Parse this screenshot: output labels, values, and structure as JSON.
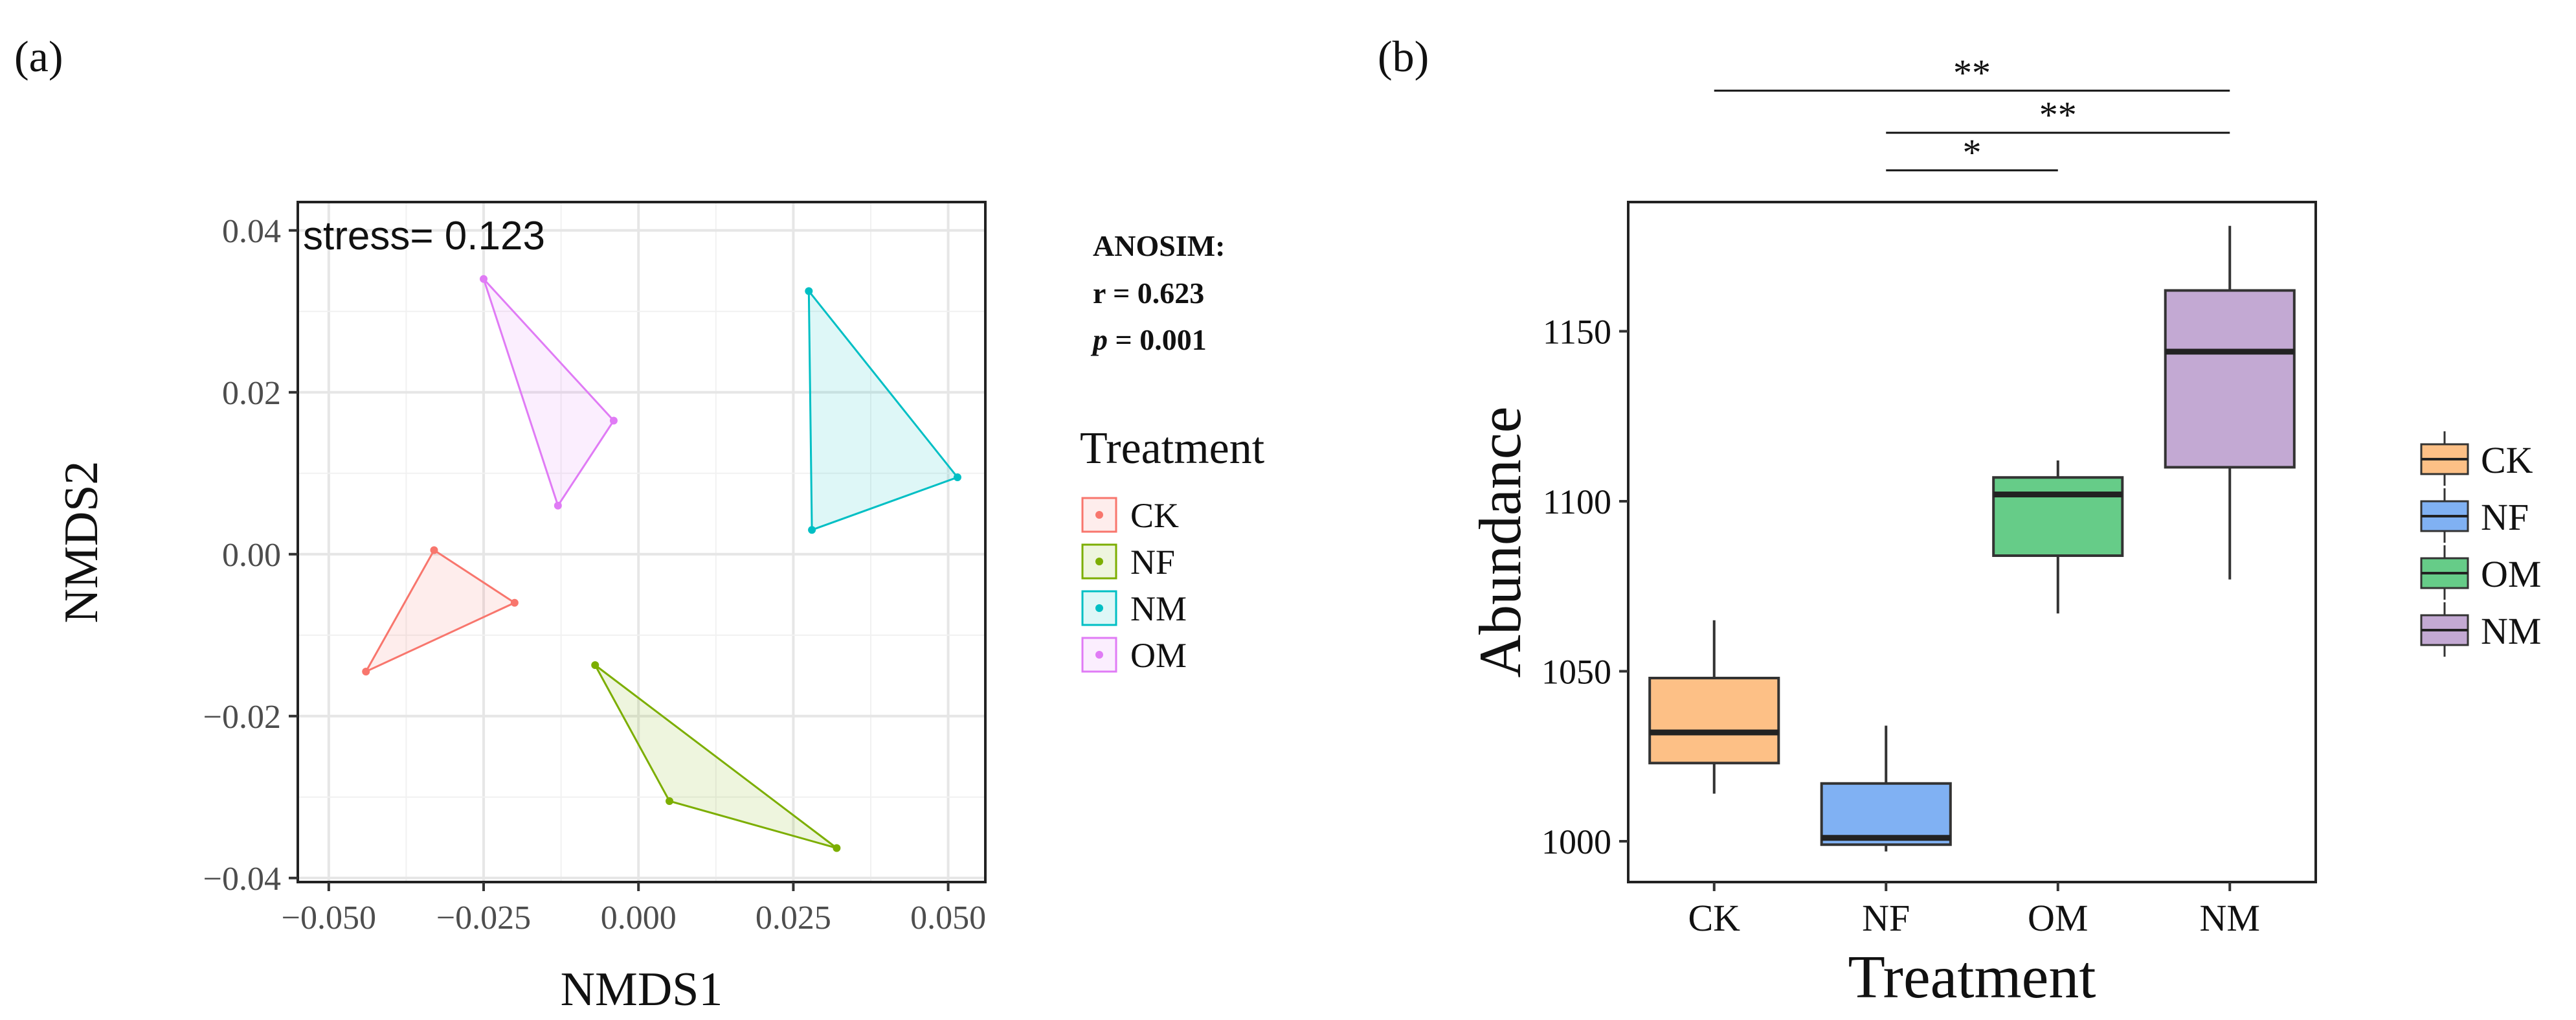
{
  "chart_data": [
    {
      "panel_label": "(a)",
      "type": "scatter",
      "subtype": "NMDS ordination with convex hulls",
      "xlabel": "NMDS1",
      "ylabel": "NMDS2",
      "xlim": [
        -0.055,
        0.056
      ],
      "ylim": [
        -0.0405,
        0.0435
      ],
      "x_ticks": [
        -0.05,
        -0.025,
        0.0,
        0.025,
        0.05
      ],
      "x_tick_labels": [
        "−0.050",
        "−0.025",
        "0.000",
        "0.025",
        "0.050"
      ],
      "y_ticks": [
        -0.04,
        -0.02,
        0.0,
        0.02,
        0.04
      ],
      "y_tick_labels": [
        "−0.04",
        "−0.02",
        "0.00",
        "0.02",
        "0.04"
      ],
      "grid": true,
      "stress_text": "stress= 0.123",
      "anosim": {
        "title": "ANOSIM:",
        "r_text": "r = 0.623",
        "p_symbol": "p",
        "p_rest": " = 0.001"
      },
      "legend": {
        "title": "Treatment",
        "placement": "right"
      },
      "series": [
        {
          "name": "CK",
          "color": "#F8766D",
          "points": [
            [
              -0.044,
              -0.0145
            ],
            [
              -0.033,
              0.0005
            ],
            [
              -0.02,
              -0.006
            ]
          ]
        },
        {
          "name": "NF",
          "color": "#7CAE00",
          "points": [
            [
              -0.007,
              -0.0137
            ],
            [
              0.005,
              -0.0305
            ],
            [
              0.032,
              -0.0363
            ]
          ]
        },
        {
          "name": "NM",
          "color": "#00BFC4",
          "points": [
            [
              0.0275,
              0.0325
            ],
            [
              0.028,
              0.003
            ],
            [
              0.0515,
              0.0095
            ]
          ]
        },
        {
          "name": "OM",
          "color": "#E07BF5",
          "points": [
            [
              -0.025,
              0.034
            ],
            [
              -0.013,
              0.006
            ],
            [
              -0.004,
              0.0165
            ]
          ]
        }
      ]
    },
    {
      "panel_label": "(b)",
      "type": "boxplot",
      "xlabel": "Treatment",
      "ylabel": "Abundance",
      "ylim": [
        988,
        1188
      ],
      "y_ticks": [
        1000,
        1050,
        1100,
        1150
      ],
      "y_tick_labels": [
        "1000",
        "1050",
        "1100",
        "1150"
      ],
      "grid": false,
      "categories": [
        "CK",
        "NF",
        "OM",
        "NM"
      ],
      "boxes": [
        {
          "name": "CK",
          "color": "#FDC086",
          "whisker_low": 1014,
          "q1": 1023,
          "median": 1032,
          "q3": 1048,
          "whisker_high": 1065
        },
        {
          "name": "NF",
          "color": "#80B1F3",
          "whisker_low": 997,
          "q1": 999,
          "median": 1001,
          "q3": 1017,
          "whisker_high": 1034
        },
        {
          "name": "OM",
          "color": "#66CC88",
          "whisker_low": 1067,
          "q1": 1084,
          "median": 1102,
          "q3": 1107,
          "whisker_high": 1112
        },
        {
          "name": "NM",
          "color": "#C3A9D3",
          "whisker_low": 1077,
          "q1": 1110,
          "median": 1144,
          "q3": 1162,
          "whisker_high": 1181
        }
      ],
      "significance": [
        {
          "from": "CK",
          "to": "NM",
          "label": "**"
        },
        {
          "from": "NF",
          "to": "NM",
          "label": "**"
        },
        {
          "from": "NF",
          "to": "OM",
          "label": "*"
        }
      ],
      "legend": {
        "title": "",
        "placement": "right",
        "order": [
          "CK",
          "NF",
          "OM",
          "NM"
        ]
      }
    }
  ]
}
